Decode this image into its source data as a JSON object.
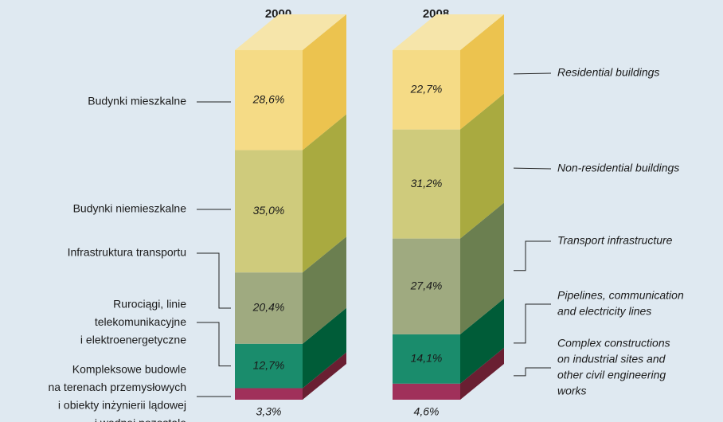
{
  "chart_data": {
    "type": "bar3d-stacked",
    "categories": [
      "2000",
      "2008"
    ],
    "series": [
      {
        "name": [
          "Kompleksowe budowle",
          "na terenach przemysłowych",
          "i obiekty inżynierii lądowej",
          "i wodnej pozostałe"
        ],
        "name_en": [
          "Complex constructions",
          "on industrial sites and",
          "other civil engineering",
          "works"
        ],
        "color": "#a0305a",
        "side_color": "#6a1f32",
        "values": [
          3.3,
          4.6
        ],
        "value_labels": [
          "3,3%",
          "4,6%"
        ]
      },
      {
        "name": [
          "Rurociągi, linie",
          "telekomunikacyjne",
          "i elektroenergetyczne"
        ],
        "name_en": [
          "Pipelines, communication",
          "and electricity lines"
        ],
        "color": "#1a8c6c",
        "side_color": "#005c38",
        "values": [
          12.7,
          14.1
        ],
        "value_labels": [
          "12,7%",
          "14,1%"
        ]
      },
      {
        "name": [
          "Infrastruktura transportu"
        ],
        "name_en": [
          "Transport infrastructure"
        ],
        "color": "#9faa80",
        "side_color": "#6b7f50",
        "values": [
          20.4,
          27.4
        ],
        "value_labels": [
          "20,4%",
          "27,4%"
        ]
      },
      {
        "name": [
          "Budynki niemieszkalne"
        ],
        "name_en": [
          "Non-residential buildings"
        ],
        "color": "#cfcb7c",
        "side_color": "#a9aa40",
        "values": [
          35.0,
          31.2
        ],
        "value_labels": [
          "35,0%",
          "31,2%"
        ]
      },
      {
        "name": [
          "Budynki mieszkalne"
        ],
        "name_en": [
          "Residential buildings"
        ],
        "color": "#f5db86",
        "side_color": "#ecc34f",
        "top_color": "#f6e5aa",
        "values": [
          28.6,
          22.7
        ],
        "value_labels": [
          "28,6%",
          "22,7%"
        ]
      }
    ]
  }
}
